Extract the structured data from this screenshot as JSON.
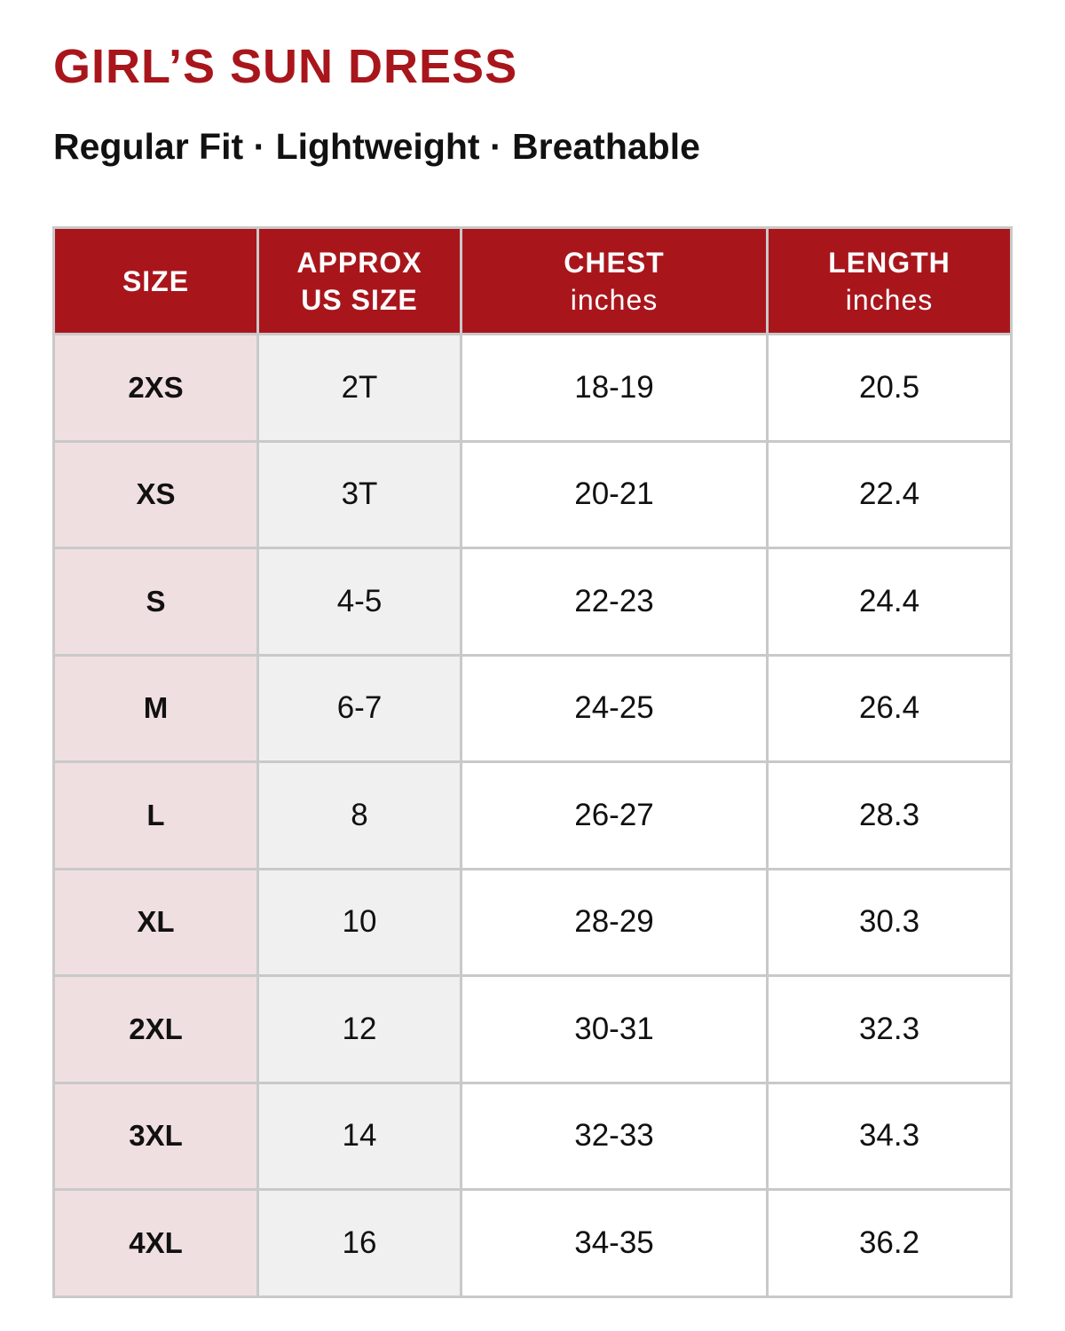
{
  "header": {
    "title": "GIRL’S SUN DRESS",
    "subtitle": "Regular Fit · Lightweight · Breathable"
  },
  "table": {
    "columns": [
      {
        "lines": [
          "SIZE"
        ]
      },
      {
        "lines": [
          "APPROX",
          "US SIZE"
        ]
      },
      {
        "lines": [
          "CHEST"
        ],
        "unit": "inches"
      },
      {
        "lines": [
          "LENGTH"
        ],
        "unit": "inches"
      }
    ],
    "rows": [
      [
        "2XS",
        "2T",
        "18-19",
        "20.5"
      ],
      [
        "XS",
        "3T",
        "20-21",
        "22.4"
      ],
      [
        "S",
        "4-5",
        "22-23",
        "24.4"
      ],
      [
        "M",
        "6-7",
        "24-25",
        "26.4"
      ],
      [
        "L",
        "8",
        "26-27",
        "28.3"
      ],
      [
        "XL",
        "10",
        "28-29",
        "30.3"
      ],
      [
        "2XL",
        "12",
        "30-31",
        "32.3"
      ],
      [
        "3XL",
        "14",
        "32-33",
        "34.3"
      ],
      [
        "4XL",
        "16",
        "34-35",
        "36.2"
      ]
    ]
  }
}
